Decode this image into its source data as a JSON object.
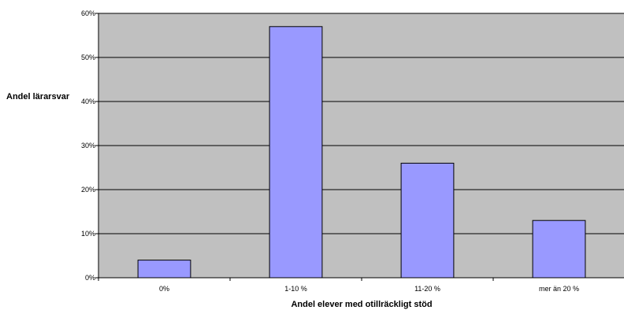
{
  "chart_data": {
    "type": "bar",
    "title": "",
    "ylabel": "Andel lärarsvar",
    "xlabel": "Andel elever med otillräckligt stöd",
    "categories": [
      "0%",
      "1-10 %",
      "11-20 %",
      "mer än 20 %"
    ],
    "values": [
      4,
      57,
      26,
      13
    ],
    "ylim": [
      0,
      60
    ],
    "yticks": [
      0,
      10,
      20,
      30,
      40,
      50,
      60
    ],
    "ytick_labels": [
      "0%",
      "10%",
      "20%",
      "30%",
      "40%",
      "50%",
      "60%"
    ],
    "grid": true,
    "legend": "none",
    "colors": {
      "plot_background": "#c0c0c0",
      "bar_fill": "#9999ff",
      "bar_stroke": "#000000",
      "gridline": "#000000"
    }
  }
}
